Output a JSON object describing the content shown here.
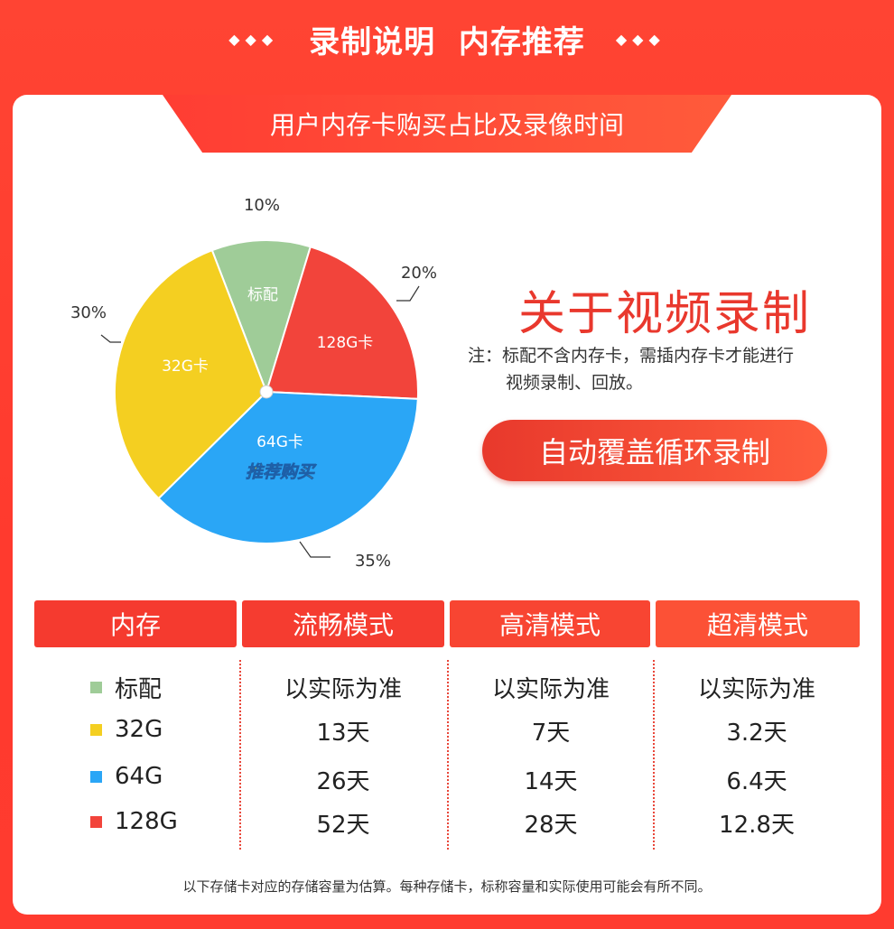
{
  "banner": {
    "title": "录制说明  内存推荐",
    "left_diamonds": "◆◆◆",
    "right_diamonds": "◆◆◆"
  },
  "card": {
    "subtitle": "用户内存卡购买占比及录像时间",
    "about_title": "关于视频录制",
    "note_line1": "注：标配不含内存卡，需插内存卡才能进行",
    "note_line2": "视频录制、回放。",
    "pill_label": "自动覆盖循环录制",
    "footer": "以下存储卡对应的存储容量为估算。每种存储卡，标称容量和实际使用可能会有所不同。"
  },
  "chart_data": {
    "type": "pie",
    "slices": [
      {
        "label": "标配",
        "value": 10,
        "pct_label": "10%",
        "color": "#9fcc98"
      },
      {
        "label": "128G卡",
        "value": 20,
        "pct_label": "20%",
        "color": "#f2443b"
      },
      {
        "label": "64G卡",
        "value": 35,
        "pct_label": "35%",
        "color": "#2aa6f6",
        "badge": "推荐购买",
        "badge_color": "#f6e83a"
      },
      {
        "label": "32G卡",
        "value": 30,
        "pct_label": "30%",
        "color": "#f4cf21"
      }
    ]
  },
  "table": {
    "headers": [
      "内存",
      "流畅模式",
      "高清模式",
      "超清模式"
    ],
    "rows": [
      {
        "label": "标配",
        "color": "#9fcc98",
        "cells": [
          "以实际为准",
          "以实际为准",
          "以实际为准"
        ]
      },
      {
        "label": "32G",
        "color": "#f4cf21",
        "cells": [
          "13天",
          "7天",
          "3.2天"
        ]
      },
      {
        "label": "64G",
        "color": "#2aa6f6",
        "cells": [
          "26天",
          "14天",
          "6.4天"
        ]
      },
      {
        "label": "128G",
        "color": "#f2443b",
        "cells": [
          "52天",
          "28天",
          "12.8天"
        ]
      }
    ]
  }
}
